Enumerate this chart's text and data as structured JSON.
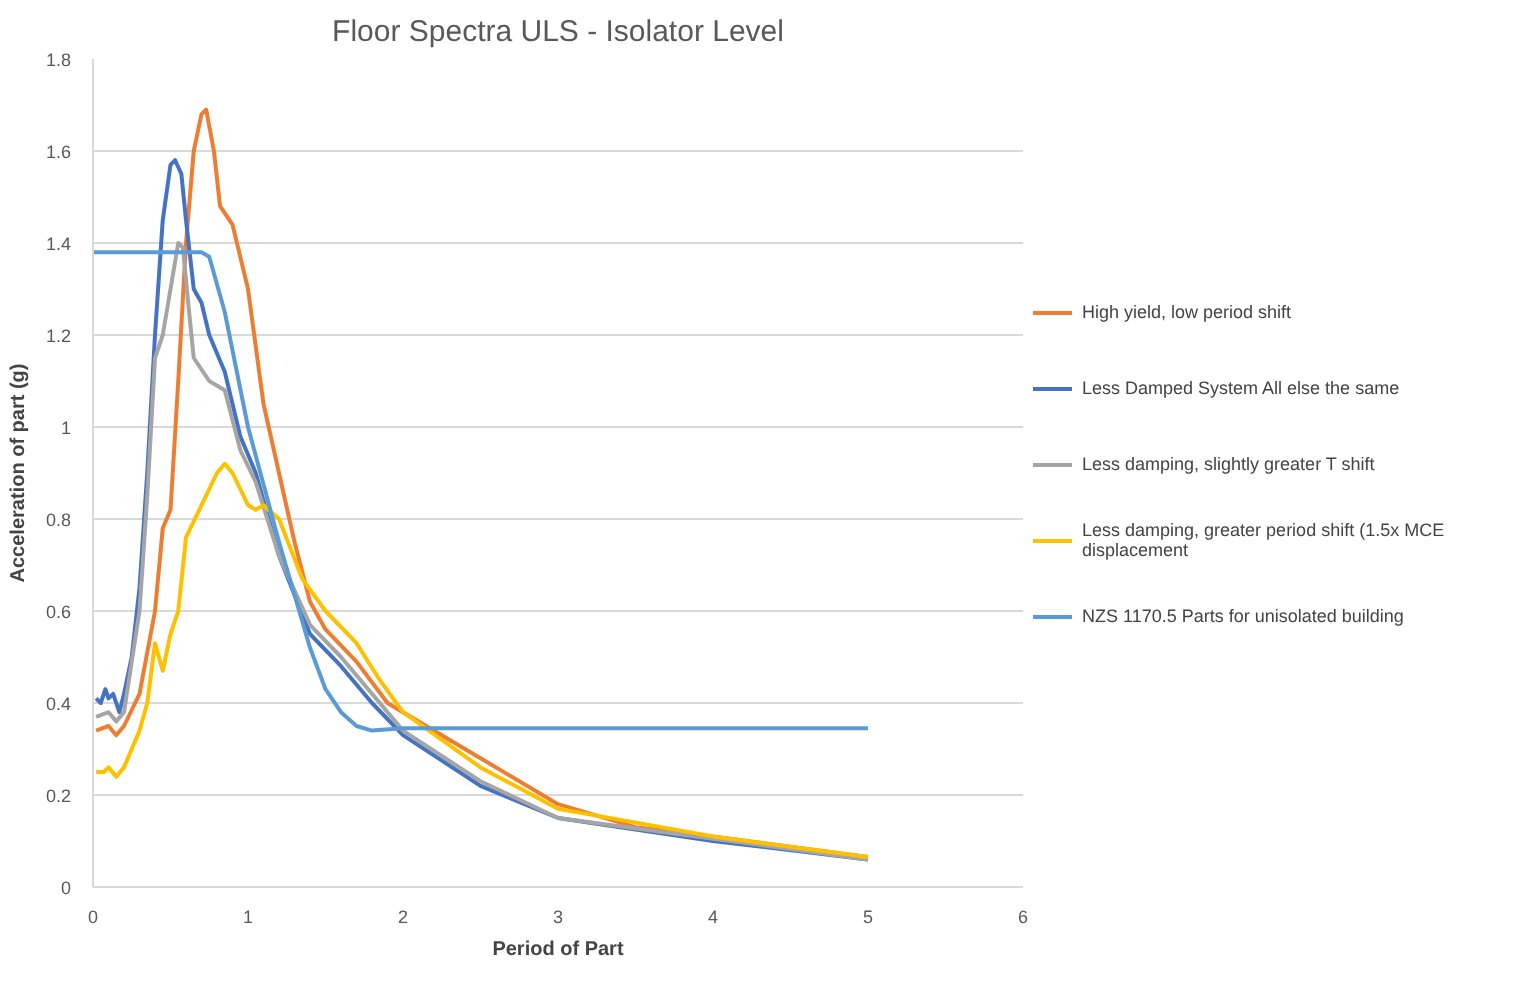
{
  "chart_data": {
    "type": "line",
    "title": "Floor Spectra ULS - Isolator Level",
    "xlabel": "Period of Part",
    "ylabel": "Acceleration of part (g)",
    "xlim": [
      0,
      6
    ],
    "xticks": [
      0,
      1,
      2,
      3,
      4,
      5,
      6
    ],
    "ylim": [
      0,
      1.8
    ],
    "yticks": [
      0,
      0.2,
      0.4,
      0.6,
      0.8,
      1,
      1.2,
      1.4,
      1.6,
      1.8
    ],
    "grid": "y",
    "legend": "right",
    "marker": "none",
    "line_style": "solid",
    "series": [
      {
        "name": "High yield, low period shift",
        "color": "#ed7d31",
        "x": [
          0.02,
          0.1,
          0.15,
          0.2,
          0.3,
          0.4,
          0.45,
          0.5,
          0.55,
          0.6,
          0.65,
          0.7,
          0.73,
          0.78,
          0.82,
          0.9,
          1.0,
          1.1,
          1.2,
          1.3,
          1.4,
          1.5,
          1.7,
          1.9,
          2.0,
          2.5,
          3.0,
          3.5,
          4.0,
          5.0
        ],
        "values": [
          0.34,
          0.35,
          0.33,
          0.35,
          0.42,
          0.6,
          0.78,
          0.82,
          1.1,
          1.4,
          1.6,
          1.68,
          1.69,
          1.6,
          1.48,
          1.44,
          1.3,
          1.05,
          0.9,
          0.75,
          0.62,
          0.56,
          0.49,
          0.4,
          0.38,
          0.28,
          0.18,
          0.13,
          0.11,
          0.065
        ]
      },
      {
        "name": "Less Damped System All else the same",
        "color": "#4472c4",
        "x": [
          0.02,
          0.05,
          0.08,
          0.1,
          0.13,
          0.17,
          0.2,
          0.25,
          0.3,
          0.35,
          0.4,
          0.45,
          0.5,
          0.53,
          0.57,
          0.6,
          0.65,
          0.7,
          0.75,
          0.85,
          0.95,
          1.05,
          1.2,
          1.4,
          1.6,
          1.8,
          2.0,
          2.5,
          3.0,
          4.0,
          5.0
        ],
        "values": [
          0.41,
          0.4,
          0.43,
          0.41,
          0.42,
          0.38,
          0.42,
          0.5,
          0.65,
          0.9,
          1.2,
          1.45,
          1.57,
          1.58,
          1.55,
          1.45,
          1.3,
          1.27,
          1.2,
          1.12,
          0.98,
          0.9,
          0.72,
          0.55,
          0.48,
          0.4,
          0.33,
          0.22,
          0.15,
          0.1,
          0.06
        ]
      },
      {
        "name": "Less damping, slightly greater T shift",
        "color": "#a5a5a5",
        "x": [
          0.02,
          0.1,
          0.15,
          0.2,
          0.3,
          0.35,
          0.4,
          0.45,
          0.5,
          0.55,
          0.58,
          0.62,
          0.65,
          0.75,
          0.85,
          0.95,
          1.05,
          1.2,
          1.4,
          1.6,
          1.8,
          2.0,
          2.5,
          3.0,
          4.0,
          5.0
        ],
        "values": [
          0.37,
          0.38,
          0.36,
          0.38,
          0.6,
          0.85,
          1.15,
          1.2,
          1.3,
          1.4,
          1.39,
          1.25,
          1.15,
          1.1,
          1.08,
          0.95,
          0.88,
          0.72,
          0.57,
          0.5,
          0.42,
          0.34,
          0.23,
          0.15,
          0.105,
          0.06
        ]
      },
      {
        "name": "Less damping, greater period shift (1.5x MCE\ndisplacement",
        "color": "#ffc000",
        "x": [
          0.02,
          0.07,
          0.1,
          0.15,
          0.2,
          0.25,
          0.3,
          0.35,
          0.4,
          0.45,
          0.5,
          0.55,
          0.6,
          0.7,
          0.8,
          0.85,
          0.9,
          1.0,
          1.05,
          1.1,
          1.2,
          1.35,
          1.5,
          1.7,
          1.85,
          2.0,
          2.5,
          3.0,
          4.0,
          5.0
        ],
        "values": [
          0.25,
          0.25,
          0.26,
          0.24,
          0.26,
          0.3,
          0.34,
          0.4,
          0.53,
          0.47,
          0.55,
          0.6,
          0.76,
          0.83,
          0.9,
          0.92,
          0.9,
          0.83,
          0.82,
          0.83,
          0.8,
          0.67,
          0.6,
          0.53,
          0.45,
          0.38,
          0.26,
          0.17,
          0.11,
          0.065
        ]
      },
      {
        "name": "NZS 1170.5 Parts for unisolated building",
        "color": "#5b9bd5",
        "x": [
          0.0,
          0.7,
          0.75,
          0.85,
          1.0,
          1.2,
          1.4,
          1.5,
          1.6,
          1.7,
          1.8,
          2.0,
          5.0
        ],
        "values": [
          1.38,
          1.38,
          1.37,
          1.25,
          1.0,
          0.75,
          0.52,
          0.43,
          0.38,
          0.35,
          0.34,
          0.345,
          0.345
        ]
      }
    ]
  }
}
